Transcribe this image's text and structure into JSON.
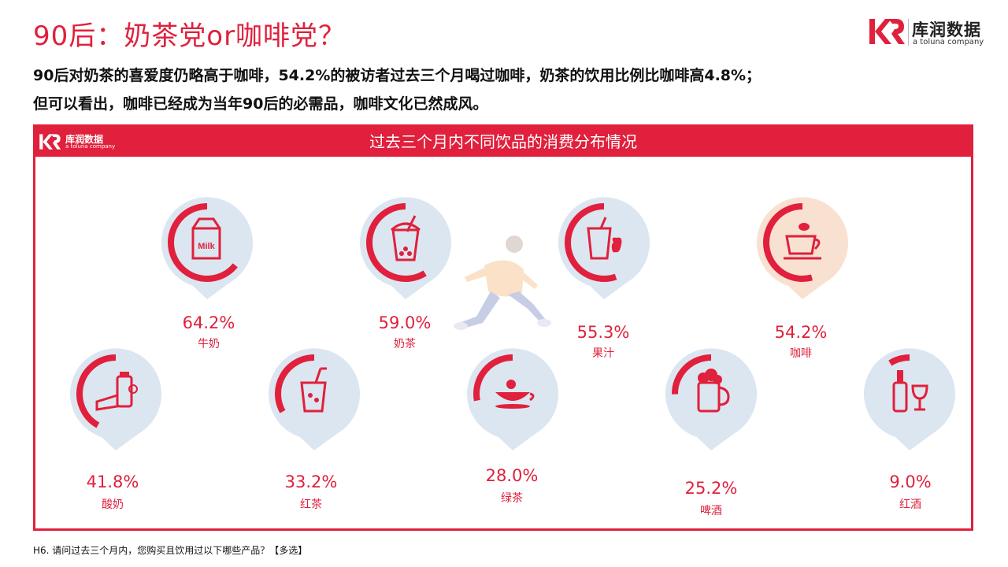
{
  "header": {
    "title": "90后：奶茶党or咖啡党？",
    "subtitle_line1": "90后对奶茶的喜爱度仍略高于咖啡，54.2%的被访者过去三个月喝过咖啡，奶茶的饮用比例比咖啡高4.8%；",
    "subtitle_line2": "但可以看出，咖啡已经成为当年90后的必需品，咖啡文化已然成风。"
  },
  "logo": {
    "name": "库润数据",
    "tagline": "a toluna company"
  },
  "panel": {
    "title": "过去三个月内不同饮品的消费分布情况"
  },
  "colors": {
    "accent": "#e0203c",
    "bubble": "#dbe6f0",
    "bubble_highlight": "#f9e1d2"
  },
  "chart_data": {
    "type": "radial-progress",
    "categories": [
      "牛奶",
      "奶茶",
      "果汁",
      "咖啡",
      "酸奶",
      "红茶",
      "绿茶",
      "啤酒",
      "红酒"
    ],
    "values": [
      64.2,
      59.0,
      55.3,
      54.2,
      41.8,
      33.2,
      28.0,
      25.2,
      9.0
    ],
    "value_labels": [
      "64.2%",
      "59.0%",
      "55.3%",
      "54.2%",
      "41.8%",
      "33.2%",
      "28.0%",
      "25.2%",
      "9.0%"
    ],
    "icons": [
      "milk-carton-icon",
      "bubble-tea-icon",
      "juice-apple-icon",
      "coffee-cup-icon",
      "yogurt-icon",
      "black-tea-icon",
      "green-tea-icon",
      "beer-icon",
      "wine-icon"
    ],
    "highlight": "咖啡"
  },
  "footnote": "H6. 请问过去三个月内，您购买且饮用过以下哪些产品？【多选】"
}
